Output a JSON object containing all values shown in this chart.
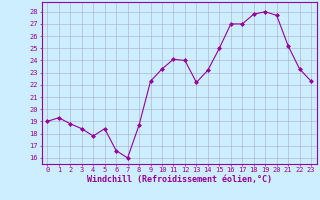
{
  "x": [
    0,
    1,
    2,
    3,
    4,
    5,
    6,
    7,
    8,
    9,
    10,
    11,
    12,
    13,
    14,
    15,
    16,
    17,
    18,
    19,
    20,
    21,
    22,
    23
  ],
  "y": [
    19.0,
    19.3,
    18.8,
    18.4,
    17.8,
    18.4,
    16.6,
    16.0,
    18.7,
    22.3,
    23.3,
    24.1,
    24.0,
    22.2,
    23.2,
    25.0,
    27.0,
    27.0,
    27.8,
    28.0,
    27.7,
    25.2,
    23.3,
    22.3
  ],
  "line_color": "#990099",
  "marker": "D",
  "marker_size": 2.0,
  "bg_color": "#cceeff",
  "grid_color": "#aaaacc",
  "ylabel_ticks": [
    16,
    17,
    18,
    19,
    20,
    21,
    22,
    23,
    24,
    25,
    26,
    27,
    28
  ],
  "xlabel_ticks": [
    0,
    1,
    2,
    3,
    4,
    5,
    6,
    7,
    8,
    9,
    10,
    11,
    12,
    13,
    14,
    15,
    16,
    17,
    18,
    19,
    20,
    21,
    22,
    23
  ],
  "xlabel_label": "Windchill (Refroidissement éolien,°C)",
  "ylim": [
    15.5,
    28.8
  ],
  "xlim": [
    -0.5,
    23.5
  ],
  "axis_color": "#990099",
  "tick_color": "#990099",
  "label_color": "#990099",
  "spine_color": "#990099"
}
